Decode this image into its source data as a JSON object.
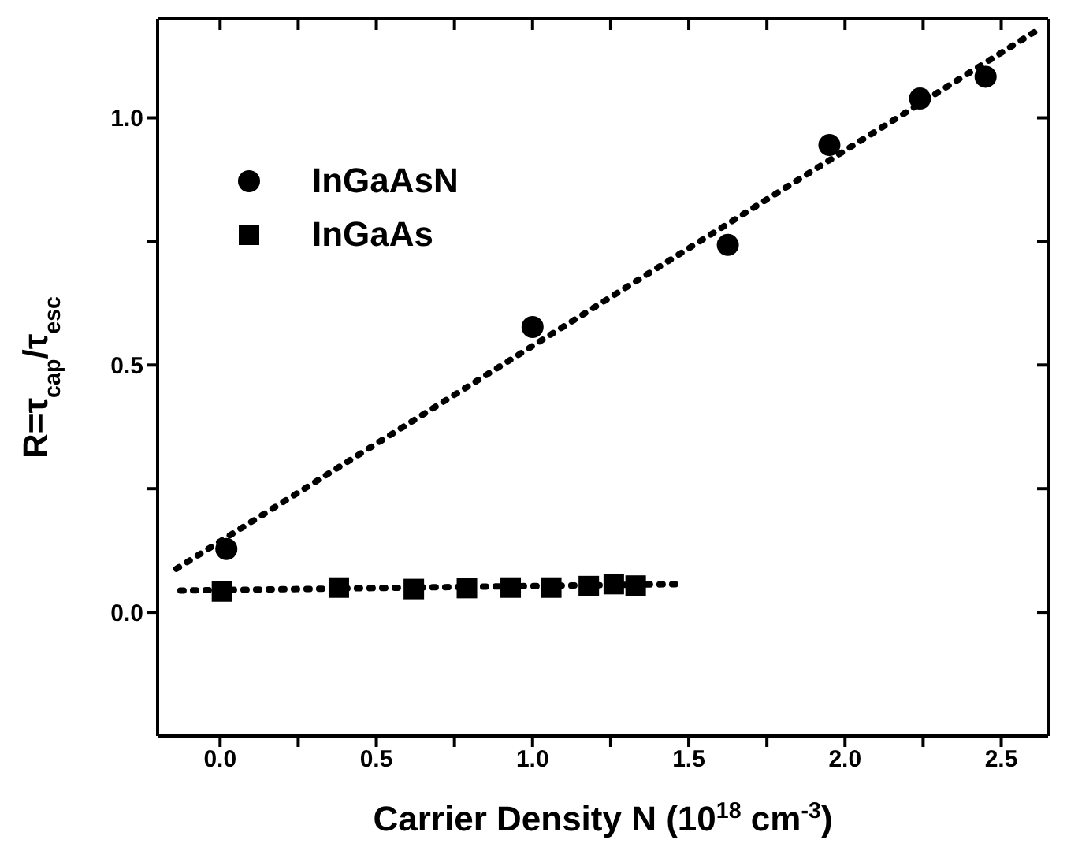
{
  "chart_data": {
    "type": "scatter",
    "xlabel": "Carrier Density N (10$^{18}$ cm$^{-3}$)",
    "ylabel": "R=τ$_{cap}$/τ$_{esc}$",
    "xlim": [
      -0.2,
      2.65
    ],
    "ylim": [
      -0.25,
      1.2
    ],
    "xticks": [
      {
        "value": 0,
        "label": "0.0"
      },
      {
        "value": 0.25,
        "label": null
      },
      {
        "value": 0.5,
        "label": "0.5"
      },
      {
        "value": 0.75,
        "label": null
      },
      {
        "value": 1,
        "label": "1.0"
      },
      {
        "value": 1.25,
        "label": null
      },
      {
        "value": 1.5,
        "label": "1.5"
      },
      {
        "value": 1.75,
        "label": null
      },
      {
        "value": 2,
        "label": "2.0"
      },
      {
        "value": 2.25,
        "label": null
      },
      {
        "value": 2.5,
        "label": "2.5"
      }
    ],
    "yticks": [
      {
        "value": 0,
        "label": "0.0"
      },
      {
        "value": 0.25,
        "label": null
      },
      {
        "value": 0.5,
        "label": "0.5"
      },
      {
        "value": 0.75,
        "label": null
      },
      {
        "value": 1,
        "label": "1.0"
      }
    ],
    "legend": "top left",
    "series": [
      {
        "name": "InGaAsN",
        "color": "#000000",
        "marker": "circle",
        "x": [
          0.02,
          1.0,
          1.625,
          1.95,
          2.24,
          2.45
        ],
        "values": [
          0.128,
          0.577,
          0.743,
          0.945,
          1.039,
          1.083
        ]
      },
      {
        "name": "InGaAs",
        "color": "#000000",
        "marker": "square",
        "x": [
          0.006,
          0.38,
          0.62,
          0.79,
          0.93,
          1.06,
          1.18,
          1.26,
          1.33
        ],
        "values": [
          0.042,
          0.05,
          0.047,
          0.049,
          0.05,
          0.05,
          0.053,
          0.057,
          0.054
        ]
      },
      {
        "type": "line",
        "color": "#000000",
        "line_style": "dotted",
        "x": [
          -0.14,
          2.61
        ],
        "values": [
          0.088,
          1.175
        ]
      },
      {
        "type": "line",
        "color": "#000000",
        "line_style": "dotted",
        "x": [
          -0.127,
          1.47
        ],
        "values": [
          0.044,
          0.057
        ]
      }
    ]
  }
}
